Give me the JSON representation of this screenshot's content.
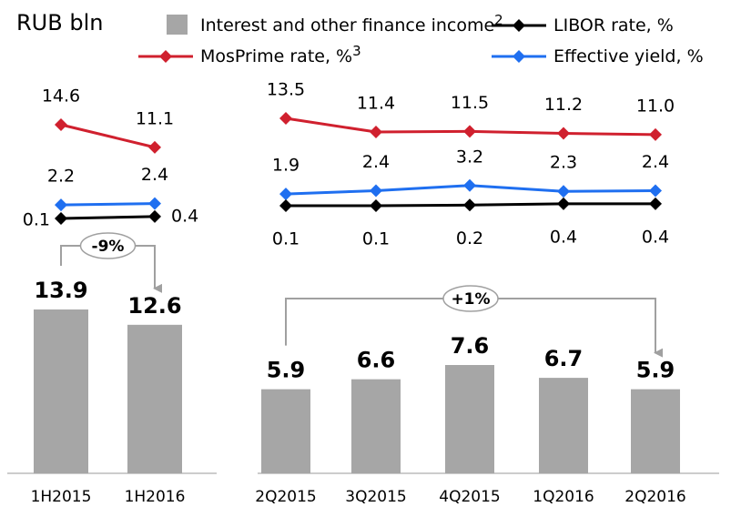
{
  "chart_data": [
    {
      "type": "bar",
      "title": "RUB bln",
      "categories": [
        "1H2015",
        "1H2016"
      ],
      "values": [
        13.9,
        12.6
      ],
      "color": "#a6a6a6",
      "bar_name": "Interest and other finance income",
      "bar_note": "2",
      "annotation": "-9%",
      "series": [
        {
          "name": "MosPrime rate, %",
          "note": "3",
          "color": "#d0202e",
          "values": [
            14.6,
            11.1
          ]
        },
        {
          "name": "Effective yield, %",
          "color": "#1f6ff0",
          "values": [
            2.2,
            2.4
          ]
        },
        {
          "name": "LIBOR rate, %",
          "color": "#000000",
          "values": [
            0.1,
            0.4
          ]
        }
      ]
    },
    {
      "type": "bar",
      "categories": [
        "2Q2015",
        "3Q2015",
        "4Q2015",
        "1Q2016",
        "2Q2016"
      ],
      "values": [
        5.9,
        6.6,
        7.6,
        6.7,
        5.9
      ],
      "color": "#a6a6a6",
      "annotation": "+1%",
      "series": [
        {
          "color": "#d0202e",
          "values": [
            13.5,
            11.4,
            11.5,
            11.2,
            11.0
          ],
          "value_labels": [
            "13.5",
            "11.4",
            "11.5",
            "11.2",
            "11.0"
          ]
        },
        {
          "color": "#1f6ff0",
          "values": [
            1.9,
            2.4,
            3.2,
            2.3,
            2.4
          ]
        },
        {
          "color": "#000000",
          "values": [
            0.1,
            0.1,
            0.2,
            0.4,
            0.4
          ]
        }
      ]
    }
  ]
}
